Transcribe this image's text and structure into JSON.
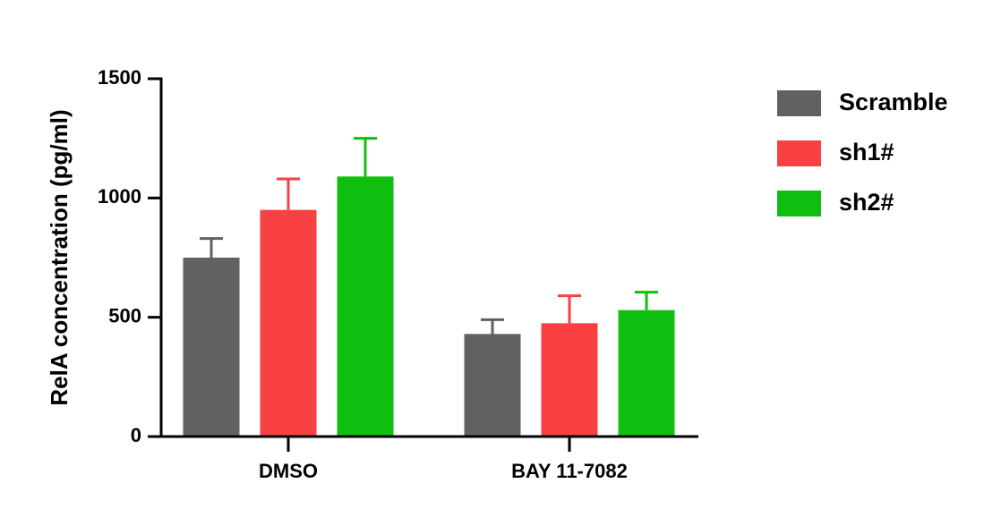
{
  "chart_data": {
    "type": "bar",
    "y_label": "RelA concentration (pg/ml)",
    "categories": [
      "DMSO",
      "BAY 11-7082"
    ],
    "series": [
      {
        "name": "Scramble",
        "color": "#616161",
        "values": [
          750,
          430
        ],
        "errors": [
          80,
          60
        ]
      },
      {
        "name": "sh1#",
        "color": "#f94144",
        "values": [
          950,
          475
        ],
        "errors": [
          130,
          115
        ]
      },
      {
        "name": "sh2#",
        "color": "#0fbf0f",
        "values": [
          1090,
          530
        ],
        "errors": [
          160,
          75
        ]
      }
    ],
    "ylim": [
      0,
      1500
    ],
    "yticks": [
      0,
      500,
      1000,
      1500
    ],
    "grid": false
  }
}
